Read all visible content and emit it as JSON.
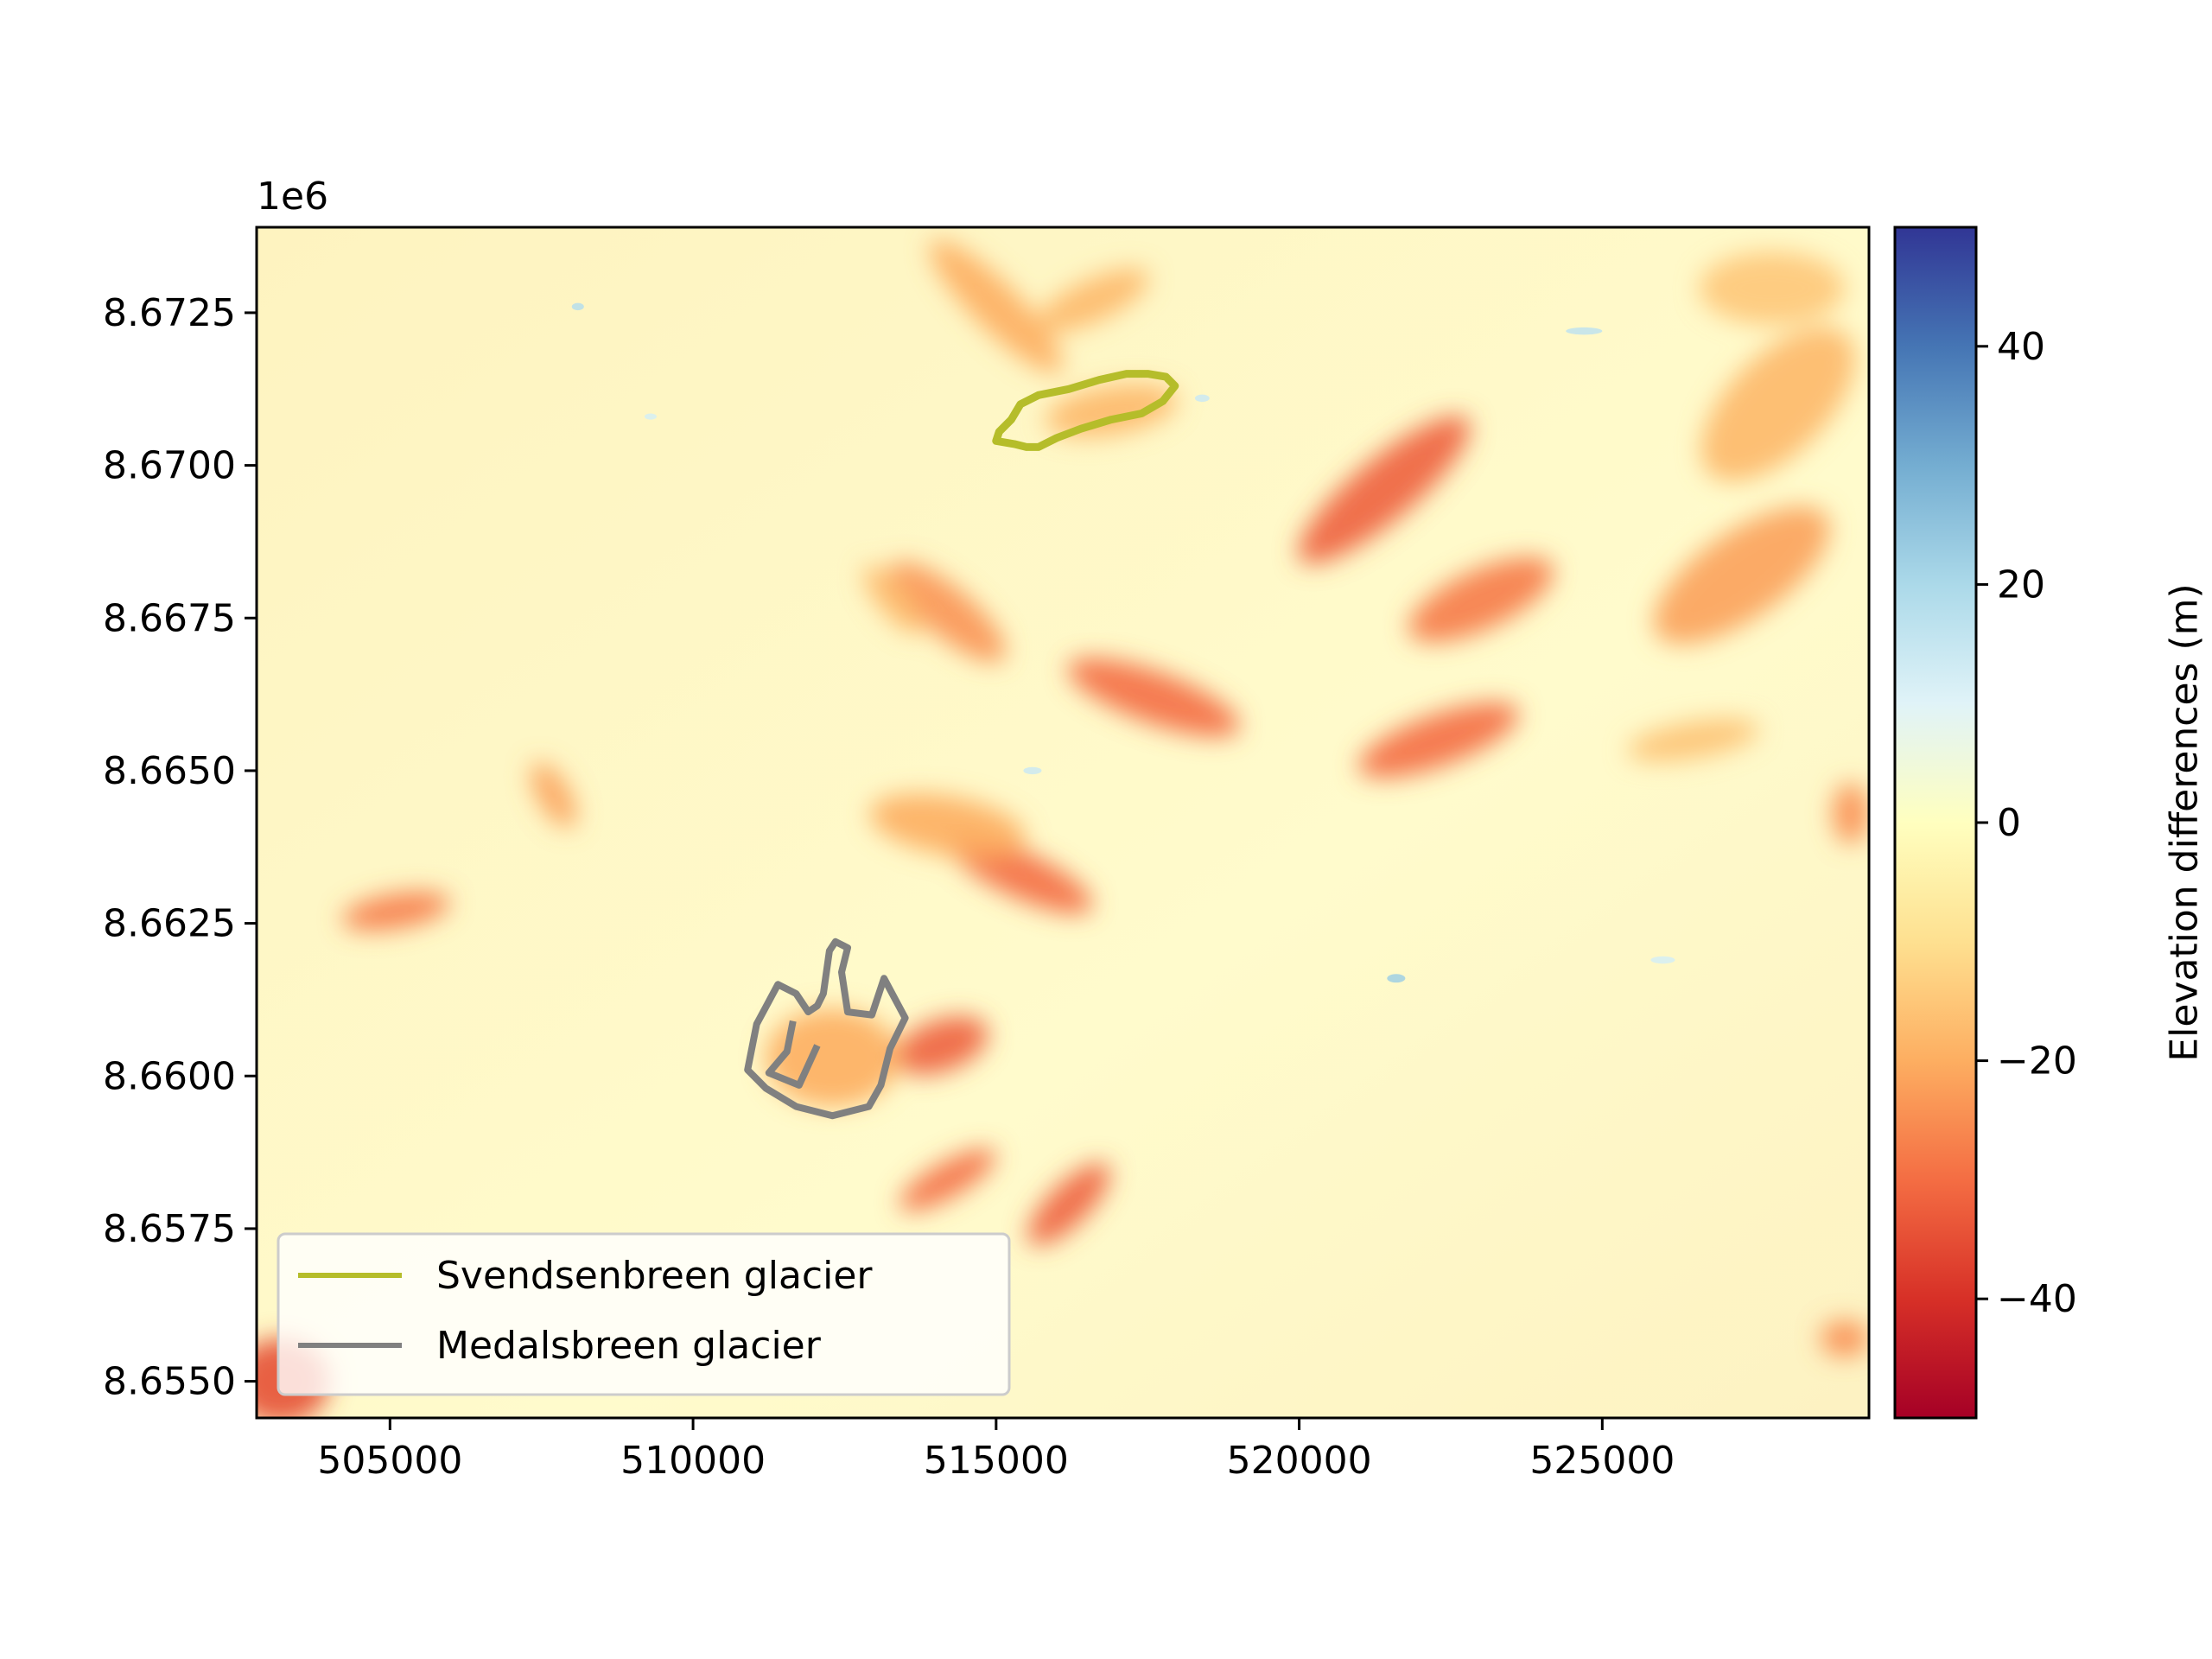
{
  "map": {
    "offset_label": "1e6",
    "colorbar_label": "Elevation differences (m)",
    "colormap": "RdYlBu",
    "colormap_colors": [
      "#a50026",
      "#d73027",
      "#f46d43",
      "#fdae61",
      "#fee090",
      "#ffffbf",
      "#e0f3f8",
      "#abd9e9",
      "#74add1",
      "#4575b4",
      "#313695"
    ],
    "colorbar_range": [
      -50,
      50
    ],
    "colorbar_ticks": [
      {
        "value": 40,
        "label": "40"
      },
      {
        "value": 20,
        "label": "20"
      },
      {
        "value": 0,
        "label": "0"
      },
      {
        "value": -20,
        "label": "−20"
      },
      {
        "value": -40,
        "label": "−40"
      }
    ],
    "x_range": [
      502800,
      529400
    ],
    "y_range": [
      8654400,
      8673900
    ],
    "x_ticks": [
      {
        "value": 505000,
        "label": "505000"
      },
      {
        "value": 510000,
        "label": "510000"
      },
      {
        "value": 515000,
        "label": "515000"
      },
      {
        "value": 520000,
        "label": "520000"
      },
      {
        "value": 525000,
        "label": "525000"
      }
    ],
    "y_ticks": [
      {
        "value": 8672500,
        "label": "8.6725"
      },
      {
        "value": 8670000,
        "label": "8.6700"
      },
      {
        "value": 8667500,
        "label": "8.6675"
      },
      {
        "value": 8665000,
        "label": "8.6650"
      },
      {
        "value": 8662500,
        "label": "8.6625"
      },
      {
        "value": 8660000,
        "label": "8.6600"
      },
      {
        "value": 8657500,
        "label": "8.6575"
      },
      {
        "value": 8655000,
        "label": "8.6550"
      }
    ],
    "legend": [
      {
        "label": "Svendsenbreen glacier",
        "color": "#b5bd2a"
      },
      {
        "label": "Medalsbreen glacier",
        "color": "#808080"
      }
    ],
    "svendsenbreen_outline": [
      [
        515050,
        8670550
      ],
      [
        515000,
        8670400
      ],
      [
        515300,
        8670350
      ],
      [
        515500,
        8670300
      ],
      [
        515700,
        8670300
      ],
      [
        516000,
        8670450
      ],
      [
        516400,
        8670600
      ],
      [
        516900,
        8670750
      ],
      [
        517400,
        8670850
      ],
      [
        517750,
        8671050
      ],
      [
        517950,
        8671300
      ],
      [
        517800,
        8671450
      ],
      [
        517500,
        8671500
      ],
      [
        517150,
        8671500
      ],
      [
        516700,
        8671400
      ],
      [
        516200,
        8671250
      ],
      [
        515700,
        8671150
      ],
      [
        515400,
        8671000
      ],
      [
        515250,
        8670750
      ]
    ],
    "medalsbreen_outline": [
      [
        512250,
        8662050
      ],
      [
        512150,
        8661350
      ],
      [
        512050,
        8661150
      ],
      [
        511900,
        8661050
      ],
      [
        511700,
        8661350
      ],
      [
        511400,
        8661500
      ],
      [
        511050,
        8660850
      ],
      [
        510900,
        8660100
      ],
      [
        511200,
        8659800
      ],
      [
        511700,
        8659500
      ],
      [
        512300,
        8659350
      ],
      [
        512900,
        8659500
      ],
      [
        513100,
        8659850
      ],
      [
        513250,
        8660450
      ],
      [
        513500,
        8660950
      ],
      [
        513150,
        8661600
      ],
      [
        512950,
        8661000
      ],
      [
        512550,
        8661050
      ],
      [
        512450,
        8661700
      ],
      [
        512550,
        8662100
      ],
      [
        512350,
        8662200
      ]
    ],
    "medalsbreen_inner": [
      [
        511650,
        8660900
      ],
      [
        511550,
        8660400
      ],
      [
        511250,
        8660050
      ],
      [
        511750,
        8659850
      ],
      [
        512050,
        8660500
      ]
    ],
    "loss_areas": [
      {
        "center": [
          516900,
          8670900
        ],
        "r": [
          1100,
          400
        ],
        "value": -18,
        "angle": -10
      },
      {
        "center": [
          515000,
          8672600
        ],
        "r": [
          1500,
          380
        ],
        "value": -20,
        "angle": 45
      },
      {
        "center": [
          516600,
          8672700
        ],
        "r": [
          1000,
          340
        ],
        "value": -18,
        "angle": -25
      },
      {
        "center": [
          521400,
          8669600
        ],
        "r": [
          1800,
          500
        ],
        "value": -32,
        "angle": -40
      },
      {
        "center": [
          523000,
          8667800
        ],
        "r": [
          1300,
          480
        ],
        "value": -28,
        "angle": -25
      },
      {
        "center": [
          522300,
          8665500
        ],
        "r": [
          1400,
          420
        ],
        "value": -30,
        "angle": -20
      },
      {
        "center": [
          527300,
          8668200
        ],
        "r": [
          1700,
          700
        ],
        "value": -22,
        "angle": -35
      },
      {
        "center": [
          527900,
          8671000
        ],
        "r": [
          1600,
          800
        ],
        "value": -18,
        "angle": -45
      },
      {
        "center": [
          527800,
          8672900
        ],
        "r": [
          1200,
          600
        ],
        "value": -15,
        "angle": 0
      },
      {
        "center": [
          526500,
          8665500
        ],
        "r": [
          1100,
          300
        ],
        "value": -16,
        "angle": -10
      },
      {
        "center": [
          517600,
          8666200
        ],
        "r": [
          1500,
          420
        ],
        "value": -30,
        "angle": 20
      },
      {
        "center": [
          514200,
          8667600
        ],
        "r": [
          1200,
          400
        ],
        "value": -24,
        "angle": 40
      },
      {
        "center": [
          513300,
          8667800
        ],
        "r": [
          700,
          250
        ],
        "value": -18,
        "angle": 50
      },
      {
        "center": [
          515400,
          8663300
        ],
        "r": [
          1300,
          380
        ],
        "value": -30,
        "angle": 25
      },
      {
        "center": [
          514200,
          8664100
        ],
        "r": [
          1300,
          480
        ],
        "value": -20,
        "angle": 10
      },
      {
        "center": [
          514100,
          8660500
        ],
        "r": [
          800,
          420
        ],
        "value": -32,
        "angle": -20
      },
      {
        "center": [
          514200,
          8658300
        ],
        "r": [
          900,
          280
        ],
        "value": -30,
        "angle": -30
      },
      {
        "center": [
          516200,
          8657900
        ],
        "r": [
          900,
          330
        ],
        "value": -32,
        "angle": -45
      },
      {
        "center": [
          512300,
          8660300
        ],
        "r": [
          1100,
          800
        ],
        "value": -20,
        "angle": 0
      },
      {
        "center": [
          505100,
          8662700
        ],
        "r": [
          900,
          280
        ],
        "value": -28,
        "angle": -10
      },
      {
        "center": [
          507700,
          8664600
        ],
        "r": [
          600,
          260
        ],
        "value": -22,
        "angle": 60
      },
      {
        "center": [
          503200,
          8655000
        ],
        "r": [
          800,
          700
        ],
        "value": -35,
        "angle": 0
      },
      {
        "center": [
          529000,
          8655700
        ],
        "r": [
          400,
          300
        ],
        "value": -25,
        "angle": 0
      },
      {
        "center": [
          529100,
          8664300
        ],
        "r": [
          300,
          500
        ],
        "value": -25,
        "angle": 0
      }
    ],
    "gain_spots": [
      {
        "center": [
          508100,
          8672600
        ],
        "r": [
          100,
          60
        ],
        "value": 18
      },
      {
        "center": [
          524700,
          8672200
        ],
        "r": [
          300,
          60
        ],
        "value": 16
      },
      {
        "center": [
          521600,
          8661600
        ],
        "r": [
          150,
          70
        ],
        "value": 22
      },
      {
        "center": [
          518400,
          8671100
        ],
        "r": [
          120,
          60
        ],
        "value": 14
      },
      {
        "center": [
          509300,
          8670800
        ],
        "r": [
          100,
          50
        ],
        "value": 12
      },
      {
        "center": [
          526000,
          8661900
        ],
        "r": [
          200,
          60
        ],
        "value": 12
      },
      {
        "center": [
          515600,
          8665000
        ],
        "r": [
          150,
          60
        ],
        "value": 14
      }
    ]
  }
}
